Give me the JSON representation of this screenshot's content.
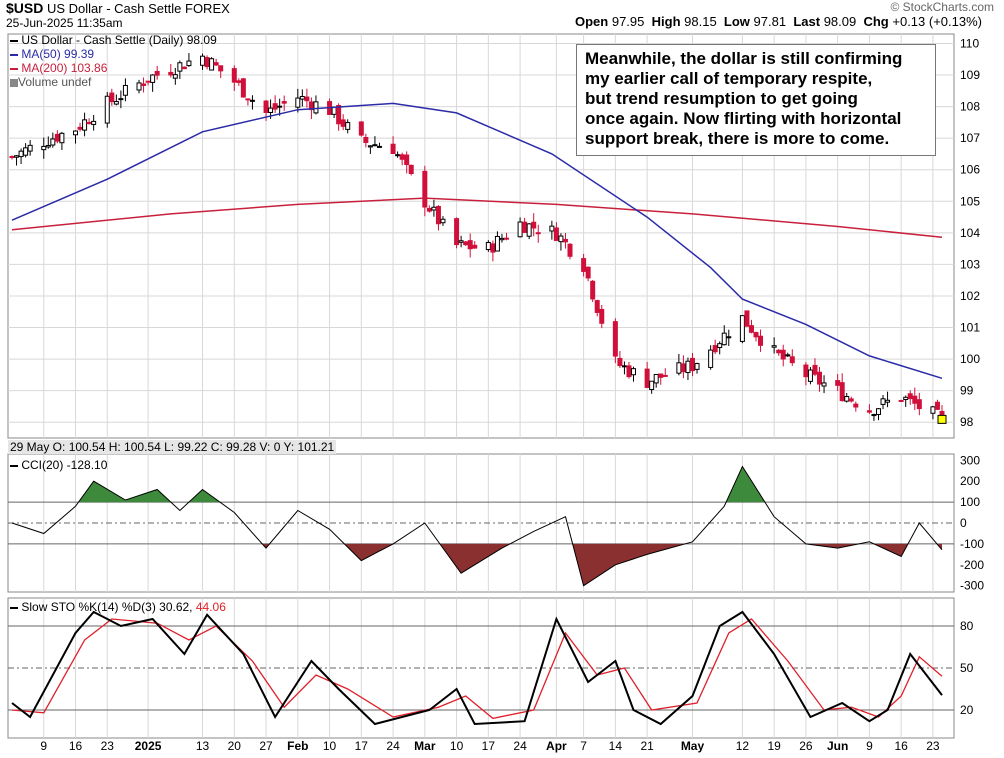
{
  "header": {
    "symbol": "$USD",
    "name": "US Dollar - Cash Settle",
    "exchange": "FOREX",
    "datetime": "25-Jun-2025 11:35am",
    "open_label": "Open",
    "open": "97.95",
    "high_label": "High",
    "high": "98.15",
    "low_label": "Low",
    "low": "97.81",
    "last_label": "Last",
    "last": "98.09",
    "chg_label": "Chg",
    "chg": "+0.13 (+0.13%)",
    "watermark": "© StockCharts.com"
  },
  "annotation": [
    "Meanwhile, the dollar is still confirming",
    "my earlier call of temporary respite,",
    "but trend resumption to get going",
    "once again. Now flirting with horizontal",
    "support break, there is more to come."
  ],
  "hover_readout": "29 May O: 100.54  H: 100.54  L: 99.22  C: 99.28  V: 0  Y: 101.21",
  "colors": {
    "up": "#000000",
    "down": "#d0103a",
    "ma50": "#2b2ba8",
    "ma200": "#c8203c",
    "cci_pos": "#3d8a3d",
    "cci_neg": "#8a3030",
    "stoch_k": "#000000",
    "stoch_d": "#e0202a",
    "grid": "#d8d8d8",
    "last_marker": "#ffff00"
  },
  "chart_data": [
    {
      "type": "candlestick",
      "legend": [
        {
          "label": "US Dollar - Cash Settle (Daily) 98.09",
          "color": "#000000"
        },
        {
          "label": "MA(50) 99.39",
          "color": "#2b2ba8"
        },
        {
          "label": "MA(200) 103.86",
          "color": "#c8203c"
        },
        {
          "label": "Volume undef",
          "color": "#666666"
        }
      ],
      "y_ticks": [
        98,
        99,
        100,
        101,
        102,
        103,
        104,
        105,
        106,
        107,
        108,
        109,
        110
      ],
      "ylim": [
        97.5,
        110.3
      ],
      "x_axis": [
        {
          "label": "9",
          "date": "2024-12-09"
        },
        {
          "label": "16",
          "date": "2024-12-16"
        },
        {
          "label": "23",
          "date": "2024-12-23"
        },
        {
          "label": "2025",
          "date": "2025-01-01",
          "bold": true
        },
        {
          "label": "13",
          "date": "2025-01-13"
        },
        {
          "label": "20",
          "date": "2025-01-20"
        },
        {
          "label": "27",
          "date": "2025-01-27"
        },
        {
          "label": "Feb",
          "date": "2025-02-03",
          "bold": true
        },
        {
          "label": "10",
          "date": "2025-02-10"
        },
        {
          "label": "17",
          "date": "2025-02-17"
        },
        {
          "label": "24",
          "date": "2025-02-24"
        },
        {
          "label": "Mar",
          "date": "2025-03-03",
          "bold": true
        },
        {
          "label": "10",
          "date": "2025-03-10"
        },
        {
          "label": "17",
          "date": "2025-03-17"
        },
        {
          "label": "24",
          "date": "2025-03-24"
        },
        {
          "label": "Apr",
          "date": "2025-04-01",
          "bold": true
        },
        {
          "label": "7",
          "date": "2025-04-07"
        },
        {
          "label": "14",
          "date": "2025-04-14"
        },
        {
          "label": "21",
          "date": "2025-04-21"
        },
        {
          "label": "May",
          "date": "2025-05-01",
          "bold": true
        },
        {
          "label": "12",
          "date": "2025-05-12"
        },
        {
          "label": "19",
          "date": "2025-05-19"
        },
        {
          "label": "26",
          "date": "2025-05-26"
        },
        {
          "label": "Jun",
          "date": "2025-06-02",
          "bold": true
        },
        {
          "label": "9",
          "date": "2025-06-09"
        },
        {
          "label": "16",
          "date": "2025-06-16"
        },
        {
          "label": "23",
          "date": "2025-06-23"
        }
      ],
      "date_range": [
        "2024-12-02",
        "2025-06-25"
      ],
      "close": [
        {
          "date": "2024-12-02",
          "value": 106.4
        },
        {
          "date": "2024-12-09",
          "value": 106.9
        },
        {
          "date": "2024-12-16",
          "value": 107.3
        },
        {
          "date": "2024-12-23",
          "value": 108.1
        },
        {
          "date": "2025-01-01",
          "value": 108.9
        },
        {
          "date": "2025-01-13",
          "value": 109.6
        },
        {
          "date": "2025-01-20",
          "value": 108.8
        },
        {
          "date": "2025-01-27",
          "value": 107.8
        },
        {
          "date": "2025-02-03",
          "value": 108.3
        },
        {
          "date": "2025-02-10",
          "value": 107.9
        },
        {
          "date": "2025-02-17",
          "value": 106.9
        },
        {
          "date": "2025-02-24",
          "value": 106.7
        },
        {
          "date": "2025-03-03",
          "value": 105.0
        },
        {
          "date": "2025-03-10",
          "value": 103.6
        },
        {
          "date": "2025-03-17",
          "value": 103.5
        },
        {
          "date": "2025-03-24",
          "value": 104.3
        },
        {
          "date": "2025-04-01",
          "value": 104.0
        },
        {
          "date": "2025-04-07",
          "value": 103.0
        },
        {
          "date": "2025-04-14",
          "value": 99.9
        },
        {
          "date": "2025-04-21",
          "value": 99.3
        },
        {
          "date": "2025-05-01",
          "value": 99.8
        },
        {
          "date": "2025-05-12",
          "value": 101.3
        },
        {
          "date": "2025-05-19",
          "value": 100.2
        },
        {
          "date": "2025-05-26",
          "value": 99.5
        },
        {
          "date": "2025-06-02",
          "value": 99.0
        },
        {
          "date": "2025-06-09",
          "value": 98.4
        },
        {
          "date": "2025-06-16",
          "value": 98.8
        },
        {
          "date": "2025-06-25",
          "value": 98.09
        }
      ],
      "ma50": [
        {
          "date": "2024-12-02",
          "value": 104.4
        },
        {
          "date": "2024-12-23",
          "value": 105.7
        },
        {
          "date": "2025-01-13",
          "value": 107.2
        },
        {
          "date": "2025-02-03",
          "value": 107.9
        },
        {
          "date": "2025-02-24",
          "value": 108.1
        },
        {
          "date": "2025-03-10",
          "value": 107.8
        },
        {
          "date": "2025-03-31",
          "value": 106.5
        },
        {
          "date": "2025-04-21",
          "value": 104.5
        },
        {
          "date": "2025-05-05",
          "value": 102.9
        },
        {
          "date": "2025-05-12",
          "value": 101.9
        },
        {
          "date": "2025-05-26",
          "value": 101.1
        },
        {
          "date": "2025-06-09",
          "value": 100.1
        },
        {
          "date": "2025-06-25",
          "value": 99.39
        }
      ],
      "ma200": [
        {
          "date": "2024-12-02",
          "value": 104.1
        },
        {
          "date": "2025-01-06",
          "value": 104.6
        },
        {
          "date": "2025-02-03",
          "value": 104.9
        },
        {
          "date": "2025-03-03",
          "value": 105.1
        },
        {
          "date": "2025-04-01",
          "value": 104.9
        },
        {
          "date": "2025-05-01",
          "value": 104.6
        },
        {
          "date": "2025-06-02",
          "value": 104.2
        },
        {
          "date": "2025-06-25",
          "value": 103.86
        }
      ]
    },
    {
      "type": "line",
      "legend": [
        {
          "label": "CCI(20) -128.10",
          "color": "#000000"
        }
      ],
      "y_ticks": [
        300,
        200,
        100,
        0,
        -100,
        -200,
        -300
      ],
      "ylim": [
        -330,
        330
      ],
      "reference_lines": [
        100,
        -100
      ],
      "center_line": 0,
      "series": [
        {
          "date": "2024-12-02",
          "value": 0
        },
        {
          "date": "2024-12-09",
          "value": -50
        },
        {
          "date": "2024-12-16",
          "value": 80
        },
        {
          "date": "2024-12-20",
          "value": 200
        },
        {
          "date": "2024-12-27",
          "value": 110
        },
        {
          "date": "2025-01-03",
          "value": 160
        },
        {
          "date": "2025-01-08",
          "value": 60
        },
        {
          "date": "2025-01-13",
          "value": 160
        },
        {
          "date": "2025-01-20",
          "value": 50
        },
        {
          "date": "2025-01-27",
          "value": -120
        },
        {
          "date": "2025-02-03",
          "value": 60
        },
        {
          "date": "2025-02-10",
          "value": -30
        },
        {
          "date": "2025-02-17",
          "value": -180
        },
        {
          "date": "2025-02-24",
          "value": -100
        },
        {
          "date": "2025-03-03",
          "value": 0
        },
        {
          "date": "2025-03-11",
          "value": -240
        },
        {
          "date": "2025-03-20",
          "value": -120
        },
        {
          "date": "2025-03-27",
          "value": -40
        },
        {
          "date": "2025-04-03",
          "value": 30
        },
        {
          "date": "2025-04-07",
          "value": -300
        },
        {
          "date": "2025-04-14",
          "value": -200
        },
        {
          "date": "2025-04-21",
          "value": -150
        },
        {
          "date": "2025-05-01",
          "value": -90
        },
        {
          "date": "2025-05-08",
          "value": 80
        },
        {
          "date": "2025-05-12",
          "value": 270
        },
        {
          "date": "2025-05-19",
          "value": 30
        },
        {
          "date": "2025-05-26",
          "value": -100
        },
        {
          "date": "2025-06-02",
          "value": -120
        },
        {
          "date": "2025-06-09",
          "value": -90
        },
        {
          "date": "2025-06-16",
          "value": -160
        },
        {
          "date": "2025-06-20",
          "value": 0
        },
        {
          "date": "2025-06-25",
          "value": -128.1
        }
      ]
    },
    {
      "type": "line",
      "legend": [
        {
          "label": "Slow STO %K(14) %D(3) 30.62,",
          "color": "#000000"
        },
        {
          "label": "44.06",
          "color": "#e0202a"
        }
      ],
      "y_ticks": [
        80,
        50,
        20
      ],
      "ylim": [
        0,
        100
      ],
      "reference_lines": [
        80,
        20
      ],
      "center_line": 50,
      "series": [
        {
          "name": "%K",
          "color": "#000000",
          "points": [
            {
              "date": "2024-12-02",
              "value": 25
            },
            {
              "date": "2024-12-06",
              "value": 15
            },
            {
              "date": "2024-12-16",
              "value": 75
            },
            {
              "date": "2024-12-20",
              "value": 90
            },
            {
              "date": "2024-12-26",
              "value": 80
            },
            {
              "date": "2025-01-02",
              "value": 85
            },
            {
              "date": "2025-01-09",
              "value": 60
            },
            {
              "date": "2025-01-14",
              "value": 88
            },
            {
              "date": "2025-01-22",
              "value": 60
            },
            {
              "date": "2025-01-29",
              "value": 15
            },
            {
              "date": "2025-02-06",
              "value": 55
            },
            {
              "date": "2025-02-12",
              "value": 35
            },
            {
              "date": "2025-02-20",
              "value": 10
            },
            {
              "date": "2025-03-04",
              "value": 20
            },
            {
              "date": "2025-03-10",
              "value": 35
            },
            {
              "date": "2025-03-14",
              "value": 10
            },
            {
              "date": "2025-03-25",
              "value": 12
            },
            {
              "date": "2025-04-01",
              "value": 85
            },
            {
              "date": "2025-04-08",
              "value": 40
            },
            {
              "date": "2025-04-14",
              "value": 55
            },
            {
              "date": "2025-04-18",
              "value": 20
            },
            {
              "date": "2025-04-24",
              "value": 10
            },
            {
              "date": "2025-05-01",
              "value": 30
            },
            {
              "date": "2025-05-07",
              "value": 80
            },
            {
              "date": "2025-05-12",
              "value": 90
            },
            {
              "date": "2025-05-19",
              "value": 60
            },
            {
              "date": "2025-05-27",
              "value": 15
            },
            {
              "date": "2025-06-03",
              "value": 25
            },
            {
              "date": "2025-06-09",
              "value": 12
            },
            {
              "date": "2025-06-13",
              "value": 20
            },
            {
              "date": "2025-06-18",
              "value": 60
            },
            {
              "date": "2025-06-25",
              "value": 30.62
            }
          ]
        },
        {
          "name": "%D",
          "color": "#e0202a",
          "points": [
            {
              "date": "2024-12-02",
              "value": 20
            },
            {
              "date": "2024-12-09",
              "value": 18
            },
            {
              "date": "2024-12-18",
              "value": 70
            },
            {
              "date": "2024-12-24",
              "value": 85
            },
            {
              "date": "2025-01-03",
              "value": 82
            },
            {
              "date": "2025-01-10",
              "value": 70
            },
            {
              "date": "2025-01-16",
              "value": 80
            },
            {
              "date": "2025-01-24",
              "value": 55
            },
            {
              "date": "2025-01-31",
              "value": 22
            },
            {
              "date": "2025-02-07",
              "value": 45
            },
            {
              "date": "2025-02-14",
              "value": 35
            },
            {
              "date": "2025-02-24",
              "value": 15
            },
            {
              "date": "2025-03-06",
              "value": 22
            },
            {
              "date": "2025-03-12",
              "value": 30
            },
            {
              "date": "2025-03-18",
              "value": 14
            },
            {
              "date": "2025-03-27",
              "value": 20
            },
            {
              "date": "2025-04-03",
              "value": 75
            },
            {
              "date": "2025-04-10",
              "value": 45
            },
            {
              "date": "2025-04-16",
              "value": 50
            },
            {
              "date": "2025-04-22",
              "value": 20
            },
            {
              "date": "2025-05-02",
              "value": 25
            },
            {
              "date": "2025-05-09",
              "value": 75
            },
            {
              "date": "2025-05-14",
              "value": 85
            },
            {
              "date": "2025-05-22",
              "value": 55
            },
            {
              "date": "2025-05-30",
              "value": 20
            },
            {
              "date": "2025-06-05",
              "value": 22
            },
            {
              "date": "2025-06-11",
              "value": 15
            },
            {
              "date": "2025-06-16",
              "value": 30
            },
            {
              "date": "2025-06-20",
              "value": 58
            },
            {
              "date": "2025-06-25",
              "value": 44.06
            }
          ]
        }
      ]
    }
  ]
}
